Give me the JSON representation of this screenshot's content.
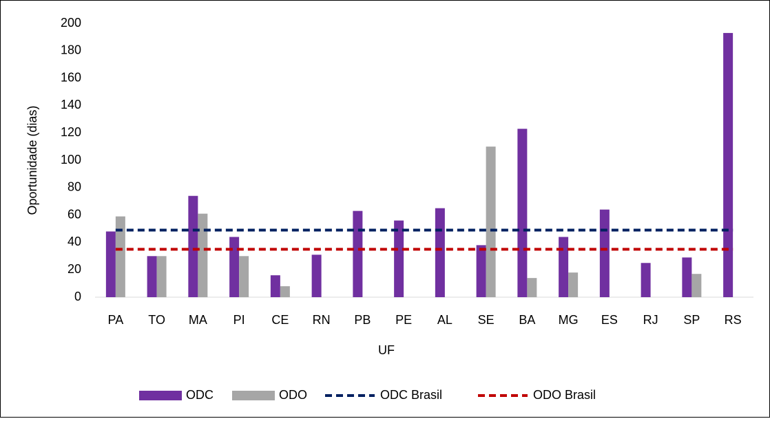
{
  "chart_data": {
    "type": "bar",
    "x_label": "UF",
    "y_label": "Oportunidade (dias)",
    "categories": [
      "PA",
      "TO",
      "MA",
      "PI",
      "CE",
      "RN",
      "PB",
      "PE",
      "AL",
      "SE",
      "BA",
      "MG",
      "ES",
      "RJ",
      "SP",
      "RS"
    ],
    "series": [
      {
        "name": "ODC",
        "type": "bar",
        "color": "#7030a0",
        "values": [
          48,
          30,
          74,
          44,
          16,
          31,
          63,
          56,
          65,
          38,
          123,
          44,
          64,
          25,
          29,
          193
        ]
      },
      {
        "name": "ODO",
        "type": "bar",
        "color": "#a6a6a6",
        "values": [
          59,
          30,
          61,
          30,
          8,
          null,
          null,
          null,
          null,
          110,
          14,
          18,
          null,
          null,
          17,
          null
        ]
      },
      {
        "name": "ODC Brasil",
        "type": "line",
        "color": "#002060",
        "values": [
          49,
          49,
          49,
          49,
          49,
          49,
          49,
          49,
          49,
          49,
          49,
          49,
          49,
          49,
          49,
          49
        ]
      },
      {
        "name": "ODO Brasil",
        "type": "line",
        "color": "#c00000",
        "values": [
          35,
          35,
          35,
          35,
          35,
          35,
          35,
          35,
          35,
          35,
          35,
          35,
          35,
          35,
          35,
          35
        ]
      }
    ],
    "ylim": [
      0,
      200
    ],
    "yticks": [
      0,
      20,
      40,
      60,
      80,
      100,
      120,
      140,
      160,
      180,
      200
    ],
    "grid": false
  }
}
